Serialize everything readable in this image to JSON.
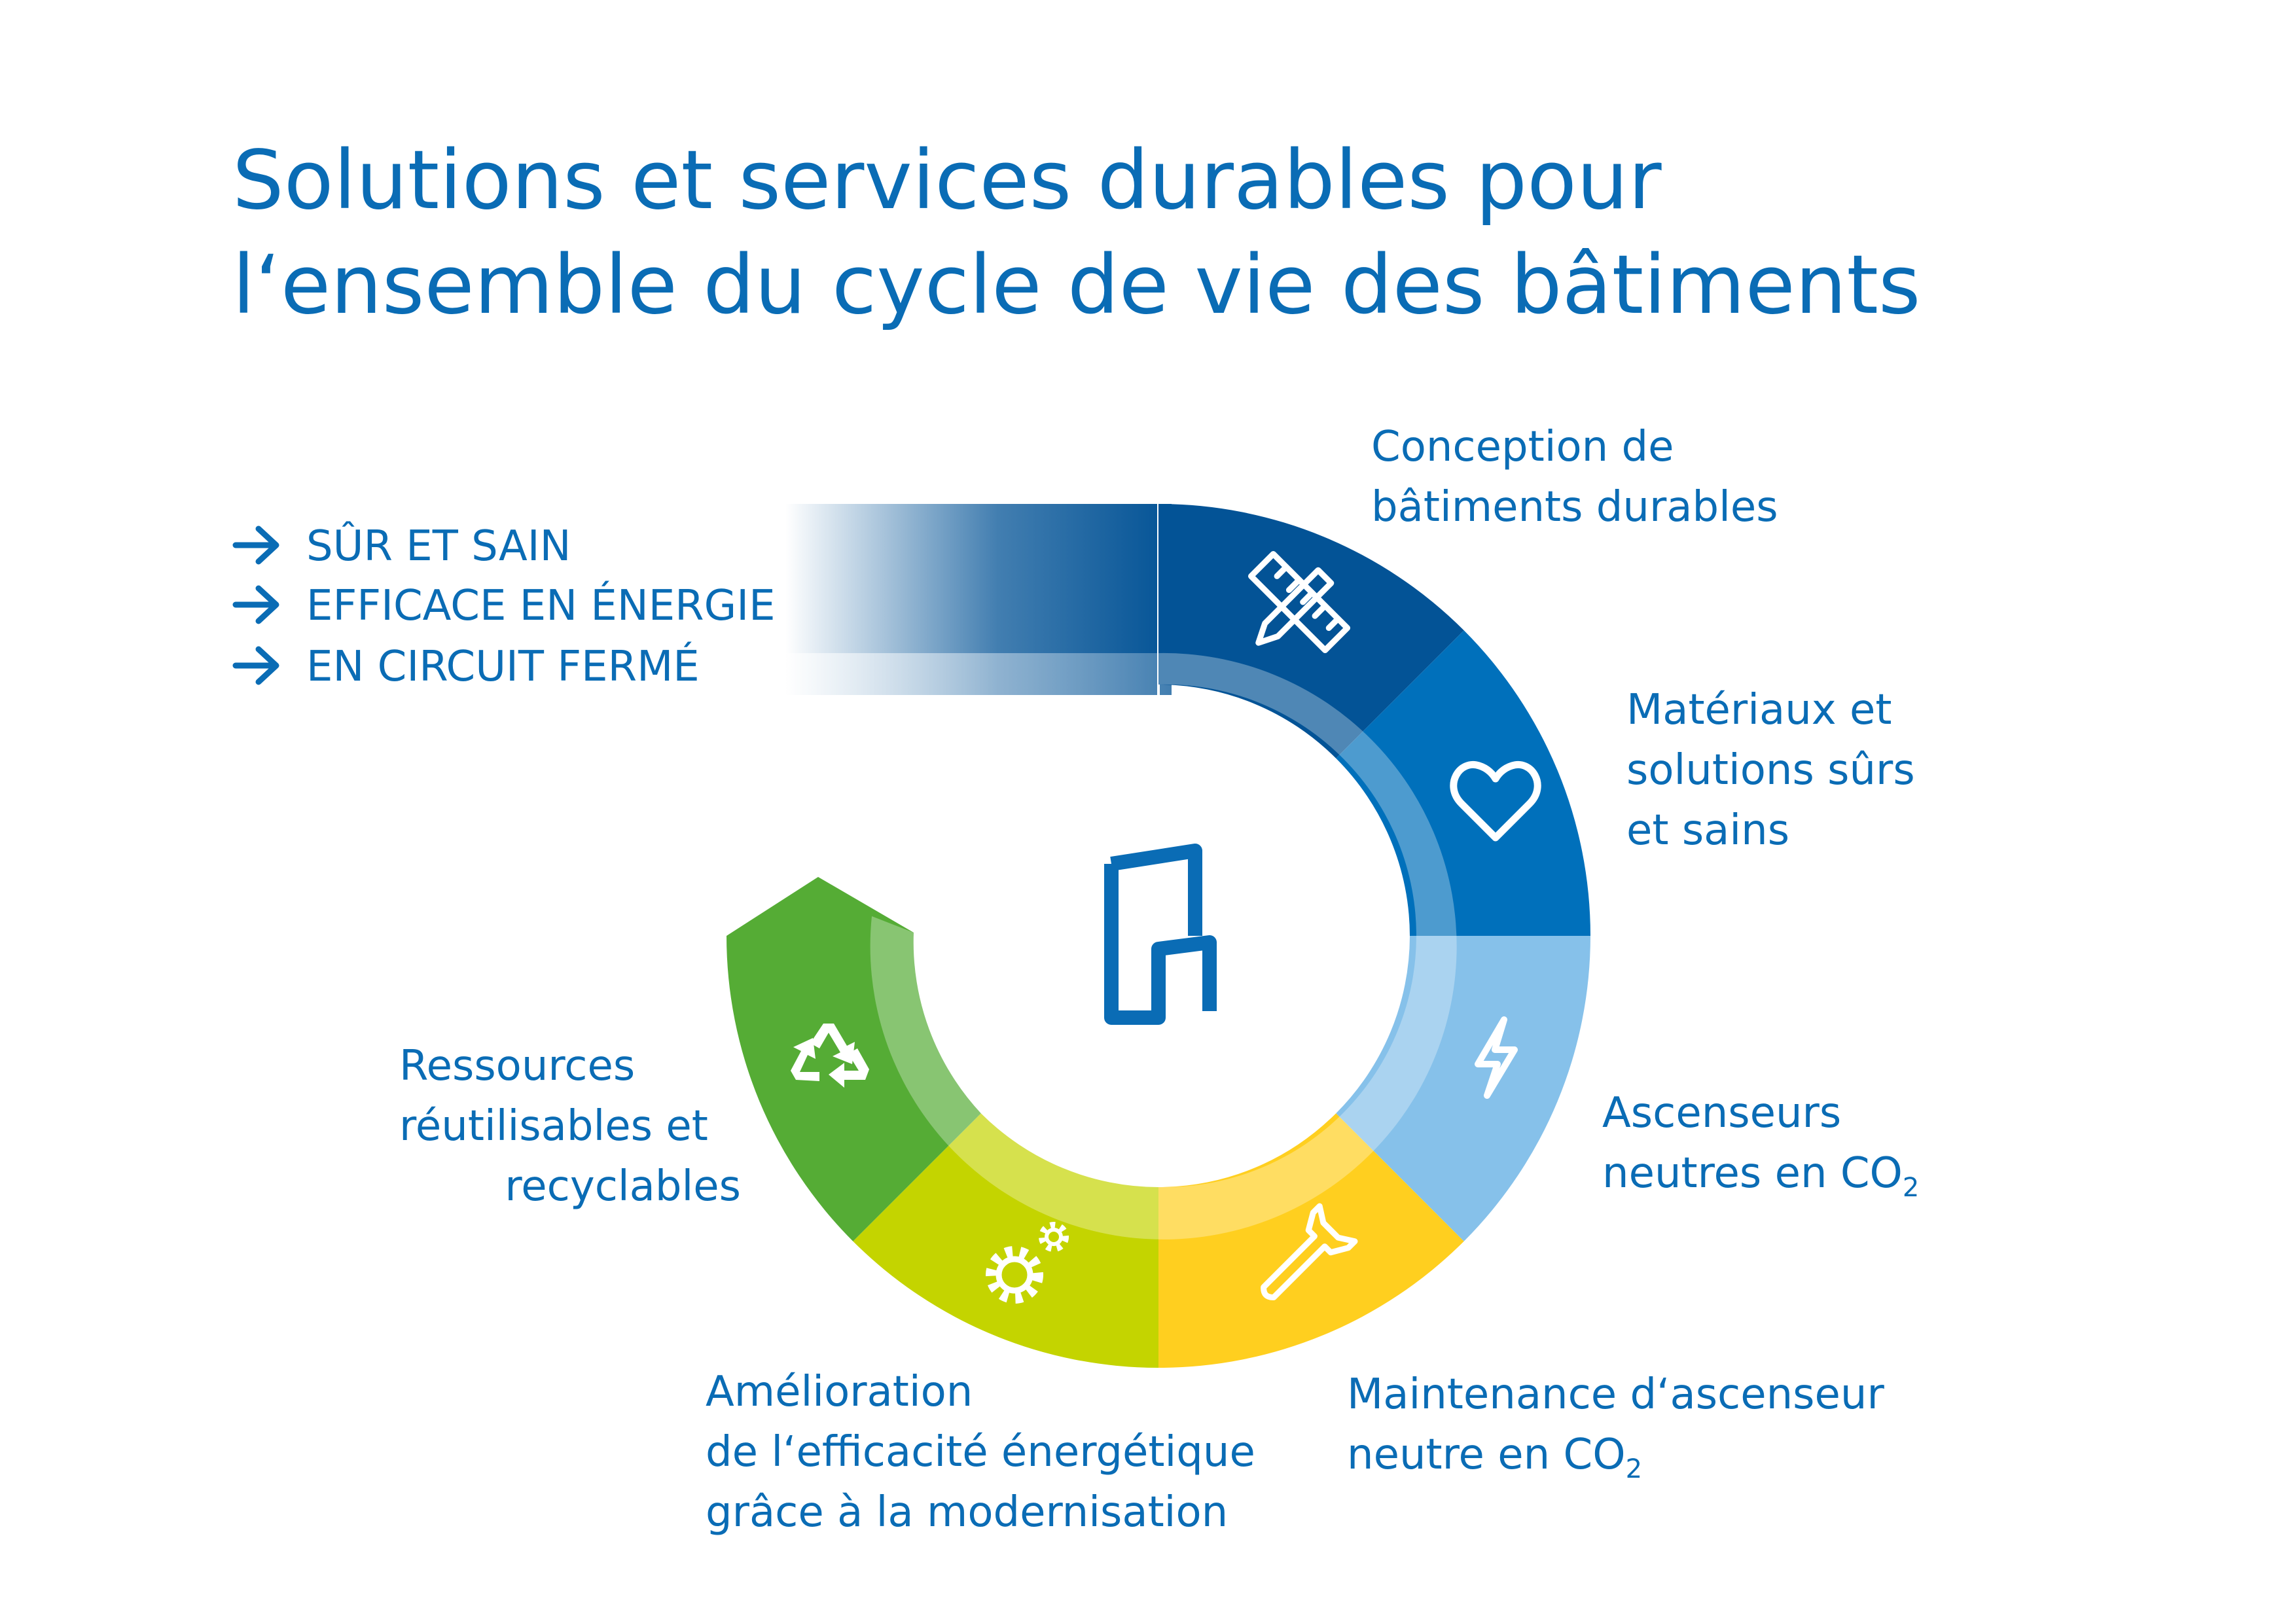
{
  "title": {
    "line1": "Solutions et services durables pour",
    "line2": "l‘ensemble du cycle de vie des bâtiments"
  },
  "principles": [
    {
      "text": "SÛR ET SAIN",
      "icon": "arrow-right-icon"
    },
    {
      "text": "EFFICACE EN ÉNERGIE",
      "icon": "arrow-right-icon"
    },
    {
      "text": "EN CIRCUIT FERMÉ",
      "icon": "arrow-right-icon"
    }
  ],
  "segments": [
    {
      "key": "conception",
      "icon": "ruler-pencil-icon",
      "color": "#035396",
      "label": [
        "Conception de",
        "bâtiments durables"
      ]
    },
    {
      "key": "materials",
      "icon": "heart-icon",
      "color": "#0070bb",
      "label": [
        "Matériaux et",
        "solutions sûrs",
        "et sains"
      ]
    },
    {
      "key": "elevators",
      "icon": "lightning-icon",
      "color": "#86c1ea",
      "label": [
        "Ascenseurs",
        "neutres en CO"
      ],
      "label_sub": "2"
    },
    {
      "key": "maintenance",
      "icon": "wrench-icon",
      "color": "#ffcf1f",
      "label": [
        "Maintenance d‘ascenseur",
        "neutre en CO"
      ],
      "label_sub": "2"
    },
    {
      "key": "modernisation",
      "icon": "gears-icon",
      "color": "#c4d400",
      "label": [
        "Amélioration",
        "de l‘efficacité énergétique",
        "grâce à la modernisation"
      ]
    },
    {
      "key": "resources",
      "icon": "recycle-icon",
      "color": "#55ac35",
      "label": [
        "Ressources",
        "réutilisables et",
        "recyclables"
      ]
    }
  ],
  "center_icon": "building-logo-icon",
  "colors": {
    "text": "#0a6cb5",
    "entry_band": "#035396",
    "inner_ring": "#ffffff"
  }
}
